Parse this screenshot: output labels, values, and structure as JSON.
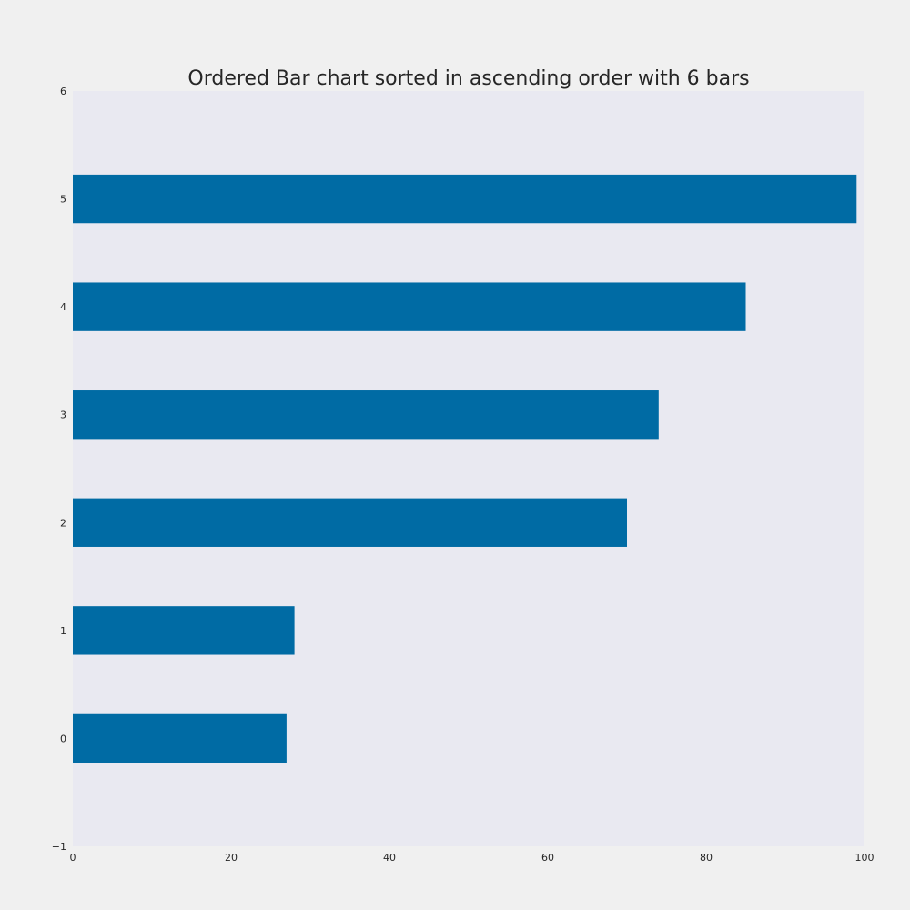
{
  "chart_data": {
    "type": "bar",
    "orientation": "horizontal",
    "title": "Ordered Bar chart sorted in ascending order with 6 bars",
    "xlabel": "",
    "ylabel": "",
    "categories": [
      "0",
      "1",
      "2",
      "3",
      "4",
      "5"
    ],
    "values": [
      27,
      28,
      70,
      74,
      85,
      99
    ],
    "xlim": [
      0,
      100
    ],
    "ylim": [
      -1,
      6
    ],
    "xticks": [
      "0",
      "20",
      "40",
      "60",
      "80",
      "100"
    ],
    "yticks": [
      "−1",
      "0",
      "1",
      "2",
      "3",
      "4",
      "5",
      "6"
    ],
    "grid": false,
    "legend": "none",
    "colors": {
      "bar": "#006ba4",
      "plot_background": "#e9e9f1",
      "figure_background": "#f0f0f0",
      "text": "#262626"
    }
  }
}
